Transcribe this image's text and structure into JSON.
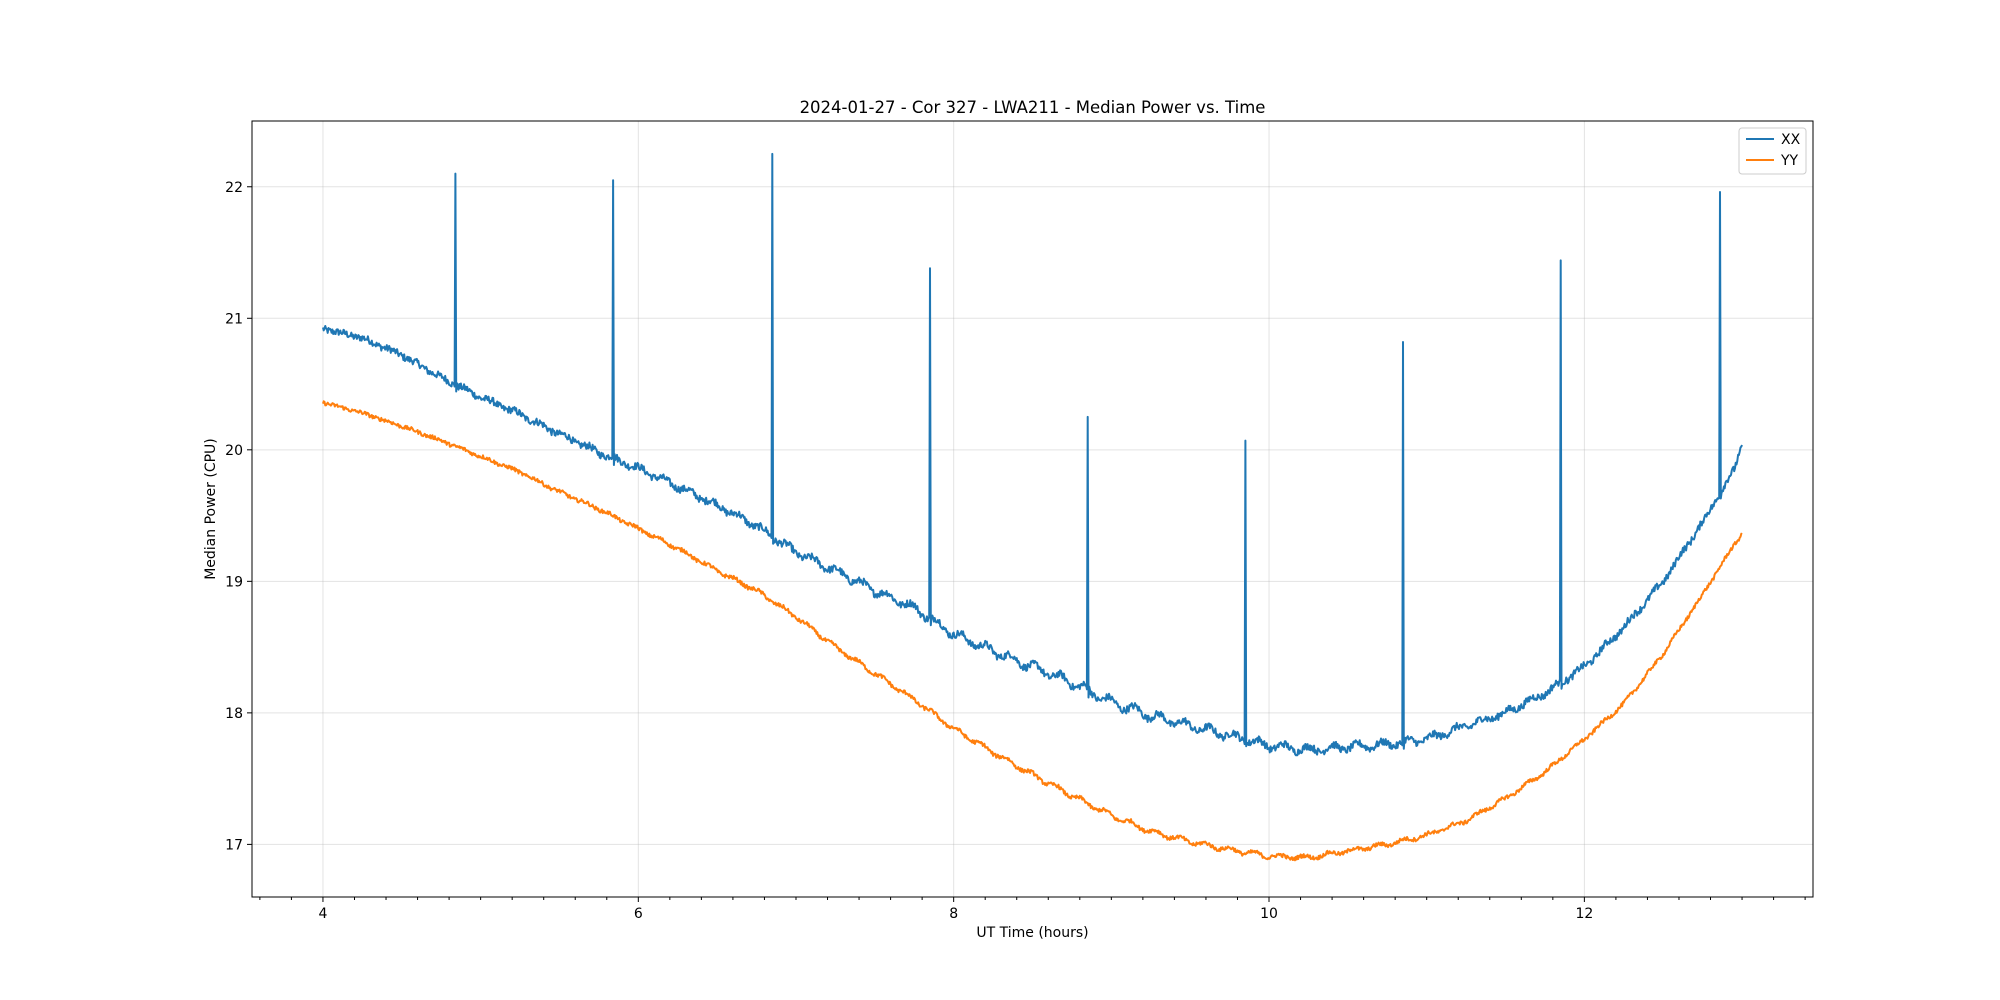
{
  "chart_data": {
    "type": "line",
    "title": "2024-01-27 - Cor 327 - LWA211 - Median Power vs. Time",
    "xlabel": "UT Time (hours)",
    "ylabel": "Median Power (CPU)",
    "xlim": [
      3.55,
      13.45
    ],
    "ylim": [
      16.6,
      22.5
    ],
    "xticks": [
      4,
      6,
      8,
      10,
      12
    ],
    "xtick_labels": [
      "4",
      "6",
      "8",
      "10",
      "12"
    ],
    "yticks": [
      17,
      18,
      19,
      20,
      21,
      22
    ],
    "ytick_labels": [
      "17",
      "18",
      "19",
      "20",
      "21",
      "22"
    ],
    "grid": true,
    "legend_position": "top-right",
    "colors": {
      "XX": "#1f77b4",
      "YY": "#ff7f0e"
    },
    "series": [
      {
        "name": "XX",
        "x": [
          4.0,
          4.25,
          4.5,
          4.75,
          5.0,
          5.25,
          5.5,
          5.75,
          6.0,
          6.25,
          6.5,
          6.75,
          7.0,
          7.25,
          7.5,
          7.75,
          8.0,
          8.25,
          8.5,
          8.75,
          9.0,
          9.25,
          9.5,
          9.75,
          10.0,
          10.25,
          10.5,
          10.75,
          11.0,
          11.25,
          11.5,
          11.75,
          12.0,
          12.25,
          12.5,
          12.75,
          12.95,
          13.0
        ],
        "y": [
          20.92,
          20.85,
          20.72,
          20.55,
          20.4,
          20.27,
          20.12,
          19.98,
          19.86,
          19.72,
          19.58,
          19.42,
          19.22,
          19.08,
          18.93,
          18.8,
          18.6,
          18.47,
          18.35,
          18.23,
          18.08,
          17.98,
          17.9,
          17.83,
          17.75,
          17.72,
          17.74,
          17.76,
          17.8,
          17.9,
          18.0,
          18.15,
          18.35,
          18.65,
          19.0,
          19.45,
          19.85,
          20.04
        ],
        "spikes": [
          {
            "x": 4.84,
            "y": 22.1
          },
          {
            "x": 5.84,
            "y": 22.05
          },
          {
            "x": 6.85,
            "y": 22.25
          },
          {
            "x": 7.85,
            "y": 21.38
          },
          {
            "x": 8.85,
            "y": 20.25
          },
          {
            "x": 9.85,
            "y": 20.07
          },
          {
            "x": 10.85,
            "y": 20.82
          },
          {
            "x": 11.85,
            "y": 21.44
          },
          {
            "x": 12.86,
            "y": 21.96
          }
        ]
      },
      {
        "name": "YY",
        "x": [
          4.0,
          4.25,
          4.5,
          4.75,
          5.0,
          5.25,
          5.5,
          5.75,
          6.0,
          6.25,
          6.5,
          6.75,
          7.0,
          7.25,
          7.5,
          7.75,
          8.0,
          8.25,
          8.5,
          8.75,
          9.0,
          9.25,
          9.5,
          9.75,
          10.0,
          10.25,
          10.5,
          10.75,
          11.0,
          11.25,
          11.5,
          11.75,
          12.0,
          12.25,
          12.5,
          12.75,
          12.95,
          13.0
        ],
        "y": [
          20.36,
          20.28,
          20.18,
          20.07,
          19.95,
          19.83,
          19.68,
          19.55,
          19.4,
          19.25,
          19.08,
          18.93,
          18.73,
          18.5,
          18.3,
          18.1,
          17.88,
          17.7,
          17.53,
          17.37,
          17.22,
          17.1,
          17.02,
          16.96,
          16.91,
          16.9,
          16.95,
          17.0,
          17.07,
          17.18,
          17.35,
          17.55,
          17.8,
          18.07,
          18.45,
          18.9,
          19.28,
          19.36
        ]
      }
    ]
  }
}
